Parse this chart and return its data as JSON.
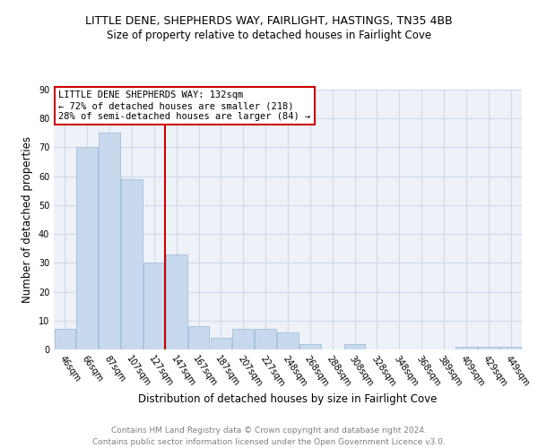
{
  "title": "LITTLE DENE, SHEPHERDS WAY, FAIRLIGHT, HASTINGS, TN35 4BB",
  "subtitle": "Size of property relative to detached houses in Fairlight Cove",
  "xlabel": "Distribution of detached houses by size in Fairlight Cove",
  "ylabel": "Number of detached properties",
  "footer_line1": "Contains HM Land Registry data © Crown copyright and database right 2024.",
  "footer_line2": "Contains public sector information licensed under the Open Government Licence v3.0.",
  "bar_labels": [
    "46sqm",
    "66sqm",
    "87sqm",
    "107sqm",
    "127sqm",
    "147sqm",
    "167sqm",
    "187sqm",
    "207sqm",
    "227sqm",
    "248sqm",
    "268sqm",
    "288sqm",
    "308sqm",
    "328sqm",
    "348sqm",
    "368sqm",
    "389sqm",
    "409sqm",
    "429sqm",
    "449sqm"
  ],
  "bar_values": [
    7,
    70,
    75,
    59,
    30,
    33,
    8,
    4,
    7,
    7,
    6,
    2,
    0,
    2,
    0,
    0,
    0,
    0,
    1,
    1,
    1
  ],
  "bar_color": "#c9d9ed",
  "bar_edge_color": "#a8c4de",
  "grid_color": "#d0d8e8",
  "annotation_box_color": "#cc0000",
  "annotation_line_color": "#cc0000",
  "annotation_text_line1": "LITTLE DENE SHEPHERDS WAY: 132sqm",
  "annotation_text_line2": "← 72% of detached houses are smaller (218)",
  "annotation_text_line3": "28% of semi-detached houses are larger (84) →",
  "marker_bar_index": 4,
  "ylim": [
    0,
    90
  ],
  "yticks": [
    0,
    10,
    20,
    30,
    40,
    50,
    60,
    70,
    80,
    90
  ],
  "bg_color": "#eef2f8",
  "title_fontsize": 9,
  "subtitle_fontsize": 8.5,
  "xlabel_fontsize": 8.5,
  "ylabel_fontsize": 8.5,
  "tick_fontsize": 7,
  "annotation_fontsize": 7.5,
  "footer_fontsize": 6.5,
  "footer_color": "#808080"
}
